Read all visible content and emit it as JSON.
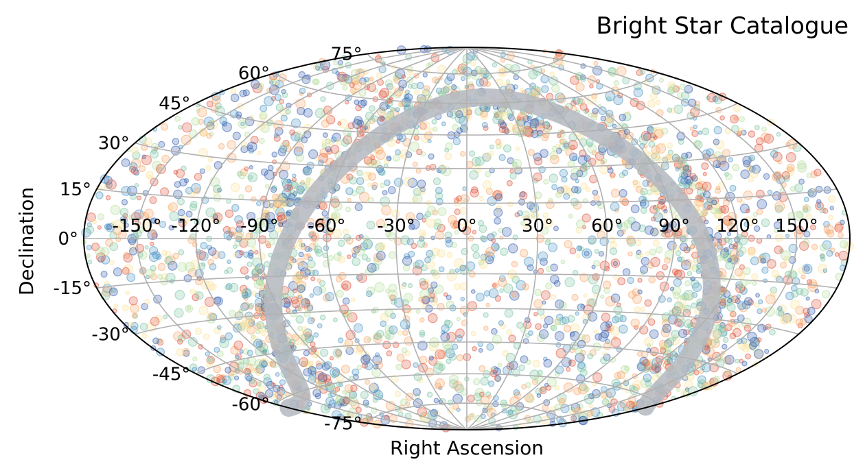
{
  "chart_data": {
    "type": "scatter",
    "projection": "aitoff-hammer (full-sky ellipse)",
    "title": "Bright Star Catalogue",
    "xlabel": "Right Ascension",
    "ylabel": "Declination",
    "x_ticks": [
      "-150°",
      "-120°",
      "-90°",
      "-60°",
      "-30°",
      "0°",
      "30°",
      "60°",
      "90°",
      "120°",
      "150°"
    ],
    "y_ticks": [
      "75°",
      "60°",
      "45°",
      "30°",
      "15°",
      "0°",
      "-15°",
      "-30°",
      "-45°",
      "-60°",
      "-75°"
    ],
    "x_tick_values": [
      -150,
      -120,
      -90,
      -60,
      -30,
      0,
      30,
      60,
      90,
      120,
      150
    ],
    "y_tick_values": [
      75,
      60,
      45,
      30,
      15,
      0,
      -15,
      -30,
      -45,
      -60,
      -75
    ],
    "xlim": [
      -180,
      180
    ],
    "ylim": [
      -90,
      90
    ],
    "grid": true,
    "galactic_plane_band": {
      "shown": true,
      "color": "#b4b8bf"
    },
    "point_colormap": [
      "#3a62b0",
      "#4f97c4",
      "#7fc4a6",
      "#b8dea0",
      "#fbe49a",
      "#f9a86d",
      "#e0583f"
    ],
    "point_count_approx": 3500,
    "notes": "Dense star field of roughly 3500 points; individual coordinates are not legible, density concentrated along galactic band."
  }
}
